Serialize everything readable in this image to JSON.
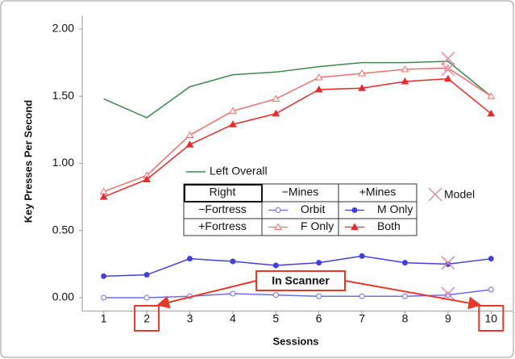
{
  "chart_data": {
    "type": "line",
    "y_label": "Key Presses Per Second",
    "x_label": "Sessions",
    "x": [
      1,
      2,
      3,
      4,
      5,
      6,
      7,
      8,
      9,
      10
    ],
    "xlim": [
      0.5,
      10.5
    ],
    "xticks": [
      1,
      2,
      3,
      4,
      5,
      6,
      7,
      8,
      9,
      10
    ],
    "ylim": [
      -0.1,
      2.1
    ],
    "yticks": [
      {
        "value": 0,
        "label": "0.00"
      },
      {
        "value": 0.5,
        "label": "0.50"
      },
      {
        "value": 1,
        "label": "1.00"
      },
      {
        "value": 1.5,
        "label": "1.50"
      },
      {
        "value": 2,
        "label": "2.00"
      }
    ],
    "series": [
      {
        "name": "Left Overall",
        "color": "#3a8a4a",
        "marker": "none",
        "values": [
          1.48,
          1.34,
          1.57,
          1.66,
          1.68,
          1.72,
          1.75,
          1.75,
          1.76,
          1.5
        ]
      },
      {
        "name": "Orbit",
        "color": "#6b6bf0",
        "marker": "circle-open",
        "values": [
          0.0,
          0.0,
          0.01,
          0.03,
          0.02,
          0.01,
          0.01,
          0.01,
          0.02,
          0.06
        ]
      },
      {
        "name": "M Only",
        "color": "#4040e0",
        "marker": "circle",
        "values": [
          0.16,
          0.17,
          0.29,
          0.27,
          0.24,
          0.26,
          0.31,
          0.26,
          0.25,
          0.29
        ]
      },
      {
        "name": "F Only",
        "color": "#f07070",
        "marker": "triangle-open",
        "values": [
          0.79,
          0.91,
          1.21,
          1.39,
          1.48,
          1.64,
          1.67,
          1.7,
          1.71,
          1.5
        ]
      },
      {
        "name": "Both",
        "color": "#e82a2a",
        "marker": "triangle",
        "values": [
          0.75,
          0.88,
          1.14,
          1.29,
          1.37,
          1.55,
          1.56,
          1.61,
          1.63,
          1.37
        ]
      }
    ],
    "model": {
      "name": "Model",
      "color": "#e38aa8",
      "x": [
        9,
        9,
        9,
        9
      ],
      "values": [
        1.78,
        1.7,
        0.26,
        0.03
      ]
    },
    "legend_table": {
      "corner": "Right",
      "columns": [
        "−Mines",
        "+Mines"
      ],
      "rows": [
        "−Fortress",
        "+Fortress"
      ]
    },
    "annotation": {
      "text": "In Scanner",
      "targets": [
        2,
        10
      ]
    }
  }
}
